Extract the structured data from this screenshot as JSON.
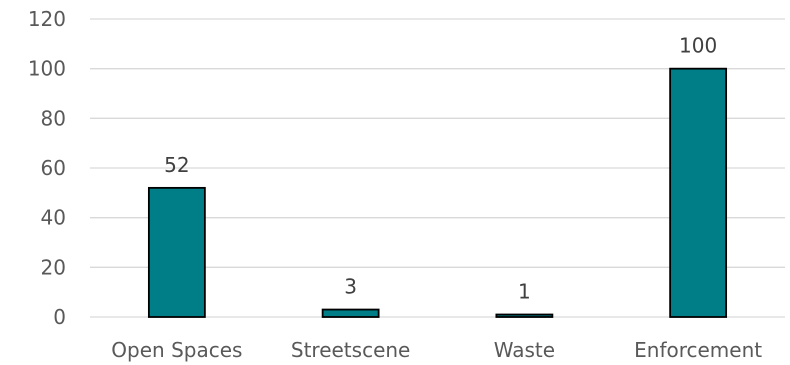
{
  "chart_data": {
    "type": "bar",
    "title": "",
    "xlabel": "",
    "ylabel": "",
    "categories": [
      "Open Spaces",
      "Streetscene",
      "Waste",
      "Enforcement"
    ],
    "values": [
      52,
      3,
      1,
      100
    ],
    "data_labels": [
      "52",
      "3",
      "1",
      "100"
    ],
    "ylim": [
      0,
      120
    ],
    "yticks": [
      0,
      20,
      40,
      60,
      80,
      100,
      120
    ],
    "grid": true,
    "legend": "none",
    "colors": {
      "bar": "#007e87",
      "bar_outline": "#000000",
      "grid": "#d9d9d9",
      "text": "#595959"
    }
  }
}
